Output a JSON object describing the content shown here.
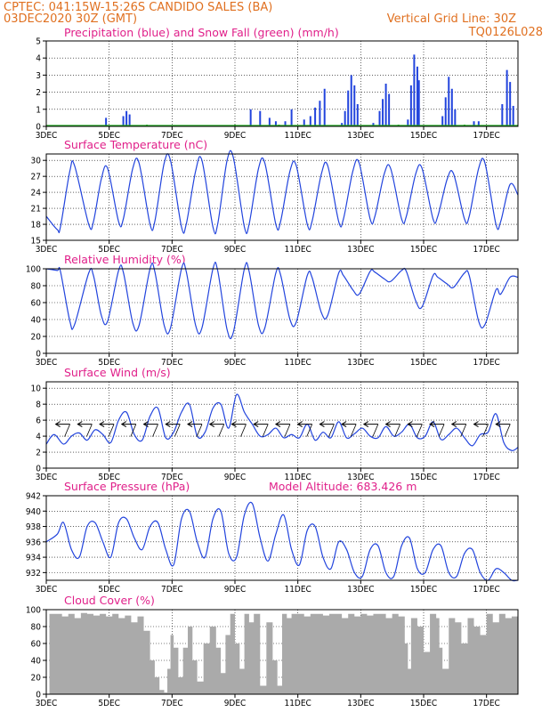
{
  "header": {
    "line1": "CPTEC:  041:15W-15:26S  CANDIDO SALES (BA)",
    "line2": "03DEC2020 30Z (GMT)",
    "grid_note": "Vertical Grid Line: 30Z",
    "code": "TQ0126L028"
  },
  "x_ticks": [
    "3DEC",
    "5DEC",
    "7DEC",
    "9DEC",
    "11DEC",
    "13DEC",
    "15DEC",
    "17DEC"
  ],
  "x_tick_days": [
    3,
    5,
    7,
    9,
    11,
    13,
    15,
    17
  ],
  "x_range": [
    3,
    18
  ],
  "colors": {
    "blue": "#2244dd",
    "green": "#22aa22",
    "gray": "#aaaaaa",
    "title": "#e0208a",
    "header": "#e07020"
  },
  "chart_data": [
    {
      "id": "precip",
      "type": "bar",
      "title": "Precipitation (blue) and Snow Fall (green) (mm/h)",
      "ylim": [
        0,
        5
      ],
      "yticks": [
        0,
        1,
        2,
        3,
        4,
        5
      ],
      "precip_points": [
        [
          4.9,
          0.5
        ],
        [
          5.45,
          0.6
        ],
        [
          5.55,
          0.9
        ],
        [
          5.65,
          0.7
        ],
        [
          9.5,
          1.0
        ],
        [
          9.8,
          0.9
        ],
        [
          10.1,
          0.5
        ],
        [
          10.3,
          0.3
        ],
        [
          10.6,
          0.3
        ],
        [
          10.8,
          1.0
        ],
        [
          11.2,
          0.4
        ],
        [
          11.4,
          0.6
        ],
        [
          11.55,
          1.1
        ],
        [
          11.7,
          1.5
        ],
        [
          11.85,
          2.2
        ],
        [
          12.4,
          0.2
        ],
        [
          12.5,
          0.9
        ],
        [
          12.6,
          2.1
        ],
        [
          12.7,
          3.0
        ],
        [
          12.8,
          2.4
        ],
        [
          12.9,
          1.3
        ],
        [
          13.4,
          0.2
        ],
        [
          13.6,
          0.9
        ],
        [
          13.7,
          1.6
        ],
        [
          13.8,
          2.5
        ],
        [
          13.9,
          1.9
        ],
        [
          14.5,
          0.4
        ],
        [
          14.6,
          2.4
        ],
        [
          14.7,
          4.2
        ],
        [
          14.8,
          3.5
        ],
        [
          14.85,
          2.7
        ],
        [
          15.6,
          0.6
        ],
        [
          15.7,
          1.7
        ],
        [
          15.8,
          2.9
        ],
        [
          15.9,
          2.2
        ],
        [
          16.0,
          1.0
        ],
        [
          16.6,
          0.3
        ],
        [
          16.75,
          0.3
        ],
        [
          17.5,
          1.3
        ],
        [
          17.65,
          3.3
        ],
        [
          17.75,
          2.6
        ],
        [
          17.85,
          1.2
        ]
      ],
      "snow_points": [
        [
          6.2,
          0.1
        ],
        [
          9.0,
          0.1
        ],
        [
          10.4,
          0.1
        ],
        [
          14.2,
          0.1
        ],
        [
          16.3,
          0.1
        ]
      ]
    },
    {
      "id": "temp",
      "type": "line",
      "title": "Surface Temperature (nC)",
      "ylim": [
        15,
        31.2
      ],
      "yticks": [
        15,
        18,
        21,
        24,
        27,
        30
      ],
      "x": [
        3.0,
        3.35,
        3.45,
        3.75,
        3.9,
        4.35,
        4.5,
        4.75,
        4.95,
        5.3,
        5.45,
        5.75,
        5.95,
        6.3,
        6.45,
        6.75,
        6.95,
        7.3,
        7.45,
        7.75,
        7.95,
        8.3,
        8.45,
        8.75,
        8.95,
        9.3,
        9.45,
        9.75,
        9.95,
        10.3,
        10.45,
        10.75,
        10.95,
        11.3,
        11.45,
        11.75,
        11.95,
        12.3,
        12.45,
        12.75,
        12.95,
        13.3,
        13.45,
        13.75,
        13.95,
        14.3,
        14.45,
        14.75,
        14.95,
        15.3,
        15.45,
        15.75,
        15.95,
        16.3,
        16.45,
        16.75,
        16.95,
        17.3,
        17.45,
        17.75,
        18.0
      ],
      "y": [
        19.5,
        17.0,
        17.5,
        28.0,
        29.0,
        18.0,
        18.5,
        26.5,
        28.5,
        18.5,
        19.0,
        28.5,
        29.5,
        18.0,
        18.5,
        29.5,
        30.0,
        17.5,
        18.0,
        28.0,
        30.0,
        17.5,
        18.0,
        30.0,
        30.5,
        17.5,
        18.0,
        28.5,
        29.5,
        18.0,
        18.5,
        28.0,
        29.0,
        18.0,
        18.5,
        27.5,
        29.0,
        18.5,
        19.0,
        28.0,
        29.5,
        19.0,
        19.5,
        27.5,
        28.5,
        19.0,
        19.5,
        27.5,
        28.5,
        19.0,
        19.5,
        26.5,
        27.5,
        19.0,
        19.5,
        28.5,
        29.5,
        18.0,
        18.5,
        25.5,
        23.5
      ]
    },
    {
      "id": "rh",
      "type": "line",
      "title": "Relative Humidity (%)",
      "ylim": [
        0,
        100
      ],
      "yticks": [
        0,
        20,
        40,
        60,
        80,
        100
      ],
      "x": [
        3.0,
        3.35,
        3.45,
        3.75,
        3.9,
        4.35,
        4.5,
        4.75,
        4.95,
        5.3,
        5.45,
        5.75,
        5.95,
        6.3,
        6.45,
        6.75,
        6.95,
        7.3,
        7.45,
        7.75,
        7.95,
        8.3,
        8.45,
        8.75,
        8.95,
        9.3,
        9.45,
        9.75,
        9.95,
        10.3,
        10.45,
        10.75,
        10.95,
        11.3,
        11.45,
        11.75,
        11.95,
        12.3,
        12.45,
        12.75,
        12.95,
        13.3,
        13.45,
        13.75,
        13.95,
        14.3,
        14.45,
        14.75,
        14.95,
        15.3,
        15.45,
        15.75,
        15.95,
        16.3,
        16.45,
        16.75,
        16.95,
        17.3,
        17.45,
        17.75,
        18.0
      ],
      "y": [
        100,
        98,
        97,
        38,
        34,
        95,
        92,
        45,
        38,
        98,
        96,
        36,
        33,
        100,
        97,
        33,
        30,
        100,
        97,
        33,
        30,
        100,
        98,
        28,
        25,
        100,
        97,
        33,
        30,
        95,
        93,
        40,
        37,
        92,
        90,
        48,
        45,
        95,
        92,
        75,
        70,
        97,
        96,
        88,
        85,
        98,
        97,
        62,
        55,
        92,
        90,
        82,
        78,
        95,
        92,
        38,
        34,
        75,
        70,
        90,
        90
      ]
    },
    {
      "id": "wind",
      "type": "line",
      "title": "Surface Wind (m/s)",
      "ylim": [
        0,
        10.8
      ],
      "yticks": [
        0,
        2,
        4,
        6,
        8,
        10
      ],
      "x": [
        3.0,
        3.25,
        3.55,
        3.8,
        4.05,
        4.3,
        4.55,
        4.8,
        5.05,
        5.3,
        5.55,
        5.8,
        6.05,
        6.3,
        6.55,
        6.8,
        7.05,
        7.3,
        7.55,
        7.8,
        8.05,
        8.3,
        8.55,
        8.8,
        9.05,
        9.3,
        9.55,
        9.8,
        10.05,
        10.3,
        10.55,
        10.8,
        11.05,
        11.3,
        11.55,
        11.8,
        12.05,
        12.3,
        12.55,
        12.8,
        13.05,
        13.3,
        13.55,
        13.8,
        14.05,
        14.3,
        14.55,
        14.8,
        15.05,
        15.3,
        15.55,
        15.8,
        16.05,
        16.3,
        16.55,
        16.8,
        17.05,
        17.3,
        17.55,
        17.8,
        18.0
      ],
      "y": [
        3.0,
        4.2,
        3.0,
        4.0,
        4.4,
        3.5,
        4.8,
        4.2,
        3.2,
        6.0,
        7.0,
        4.2,
        3.5,
        6.5,
        7.5,
        3.8,
        4.5,
        7.0,
        8.0,
        4.0,
        4.5,
        7.5,
        8.0,
        5.0,
        9.2,
        7.0,
        5.5,
        4.0,
        4.2,
        5.0,
        3.8,
        4.2,
        3.8,
        5.5,
        3.5,
        4.5,
        3.8,
        5.8,
        3.8,
        4.3,
        5.0,
        4.0,
        3.8,
        5.2,
        4.0,
        4.5,
        5.5,
        3.8,
        4.0,
        5.8,
        3.6,
        4.2,
        5.0,
        3.8,
        2.8,
        4.2,
        4.5,
        6.8,
        3.2,
        2.2,
        2.6
      ],
      "arrow_x": [
        3.3,
        4.0,
        4.7,
        5.4,
        6.1,
        6.8,
        7.5,
        8.2,
        8.9,
        9.6,
        10.3,
        11.0,
        11.7,
        12.4,
        13.1,
        13.8,
        14.5,
        15.2,
        15.9,
        16.6,
        17.3
      ]
    },
    {
      "id": "pres",
      "type": "line",
      "title": "Surface Pressure (hPa)",
      "extra_label": "Model Altitude: 683.426 m",
      "ylim": [
        931,
        942
      ],
      "yticks": [
        932,
        934,
        936,
        938,
        940,
        942
      ],
      "x": [
        3.0,
        3.35,
        3.55,
        3.8,
        4.05,
        4.3,
        4.55,
        4.8,
        5.05,
        5.3,
        5.55,
        5.8,
        6.05,
        6.3,
        6.55,
        6.8,
        7.05,
        7.3,
        7.55,
        7.8,
        8.05,
        8.3,
        8.55,
        8.8,
        9.05,
        9.3,
        9.55,
        9.8,
        10.05,
        10.3,
        10.55,
        10.8,
        11.05,
        11.3,
        11.55,
        11.8,
        12.05,
        12.3,
        12.55,
        12.8,
        13.05,
        13.3,
        13.55,
        13.8,
        14.05,
        14.3,
        14.55,
        14.8,
        15.05,
        15.3,
        15.55,
        15.8,
        16.05,
        16.3,
        16.55,
        16.8,
        17.05,
        17.3,
        17.55,
        17.8,
        18.0
      ],
      "y": [
        936.0,
        937.0,
        938.5,
        935.0,
        934.0,
        938.0,
        938.5,
        936.0,
        934.0,
        938.5,
        939.0,
        936.5,
        935.0,
        938.0,
        938.5,
        935.0,
        933.0,
        939.0,
        940.0,
        936.0,
        934.0,
        939.0,
        940.0,
        934.5,
        934.0,
        939.5,
        941.0,
        936.5,
        933.5,
        937.0,
        939.5,
        935.0,
        933.0,
        937.5,
        938.0,
        934.0,
        932.5,
        936.0,
        935.0,
        932.0,
        931.5,
        935.0,
        935.5,
        932.0,
        931.5,
        935.5,
        936.5,
        932.5,
        932.0,
        935.0,
        935.5,
        932.0,
        931.5,
        934.5,
        935.0,
        932.0,
        931.0,
        932.5,
        932.0,
        931.0,
        931.0
      ]
    },
    {
      "id": "cloud",
      "type": "area",
      "title": "Cloud Cover (%)",
      "ylim": [
        0,
        100
      ],
      "yticks": [
        0,
        20,
        40,
        60,
        80,
        100
      ],
      "x": [
        3.0,
        3.1,
        3.3,
        3.5,
        3.7,
        3.9,
        4.1,
        4.3,
        4.5,
        4.7,
        4.9,
        5.1,
        5.3,
        5.5,
        5.7,
        5.9,
        6.1,
        6.3,
        6.45,
        6.6,
        6.75,
        6.85,
        6.95,
        7.05,
        7.2,
        7.35,
        7.5,
        7.65,
        7.8,
        8.0,
        8.2,
        8.4,
        8.55,
        8.7,
        8.85,
        9.0,
        9.15,
        9.3,
        9.45,
        9.6,
        9.8,
        10.0,
        10.2,
        10.35,
        10.5,
        10.65,
        10.8,
        11.0,
        11.2,
        11.4,
        11.6,
        11.8,
        12.0,
        12.2,
        12.4,
        12.6,
        12.8,
        13.0,
        13.2,
        13.4,
        13.6,
        13.8,
        14.0,
        14.2,
        14.4,
        14.5,
        14.6,
        14.8,
        15.0,
        15.2,
        15.4,
        15.5,
        15.6,
        15.8,
        16.0,
        16.2,
        16.4,
        16.6,
        16.8,
        17.0,
        17.2,
        17.4,
        17.6,
        17.8,
        18.0
      ],
      "y": [
        0,
        95,
        95,
        92,
        95,
        90,
        96,
        95,
        93,
        95,
        92,
        95,
        90,
        93,
        85,
        92,
        75,
        40,
        20,
        5,
        2,
        30,
        70,
        55,
        20,
        55,
        80,
        40,
        15,
        60,
        80,
        55,
        25,
        70,
        95,
        60,
        30,
        95,
        85,
        95,
        10,
        85,
        40,
        10,
        95,
        90,
        95,
        95,
        92,
        95,
        95,
        93,
        95,
        95,
        90,
        95,
        92,
        95,
        93,
        95,
        95,
        90,
        95,
        92,
        60,
        30,
        90,
        80,
        50,
        95,
        90,
        55,
        30,
        90,
        85,
        60,
        90,
        80,
        70,
        95,
        85,
        95,
        90,
        92,
        95
      ]
    }
  ]
}
